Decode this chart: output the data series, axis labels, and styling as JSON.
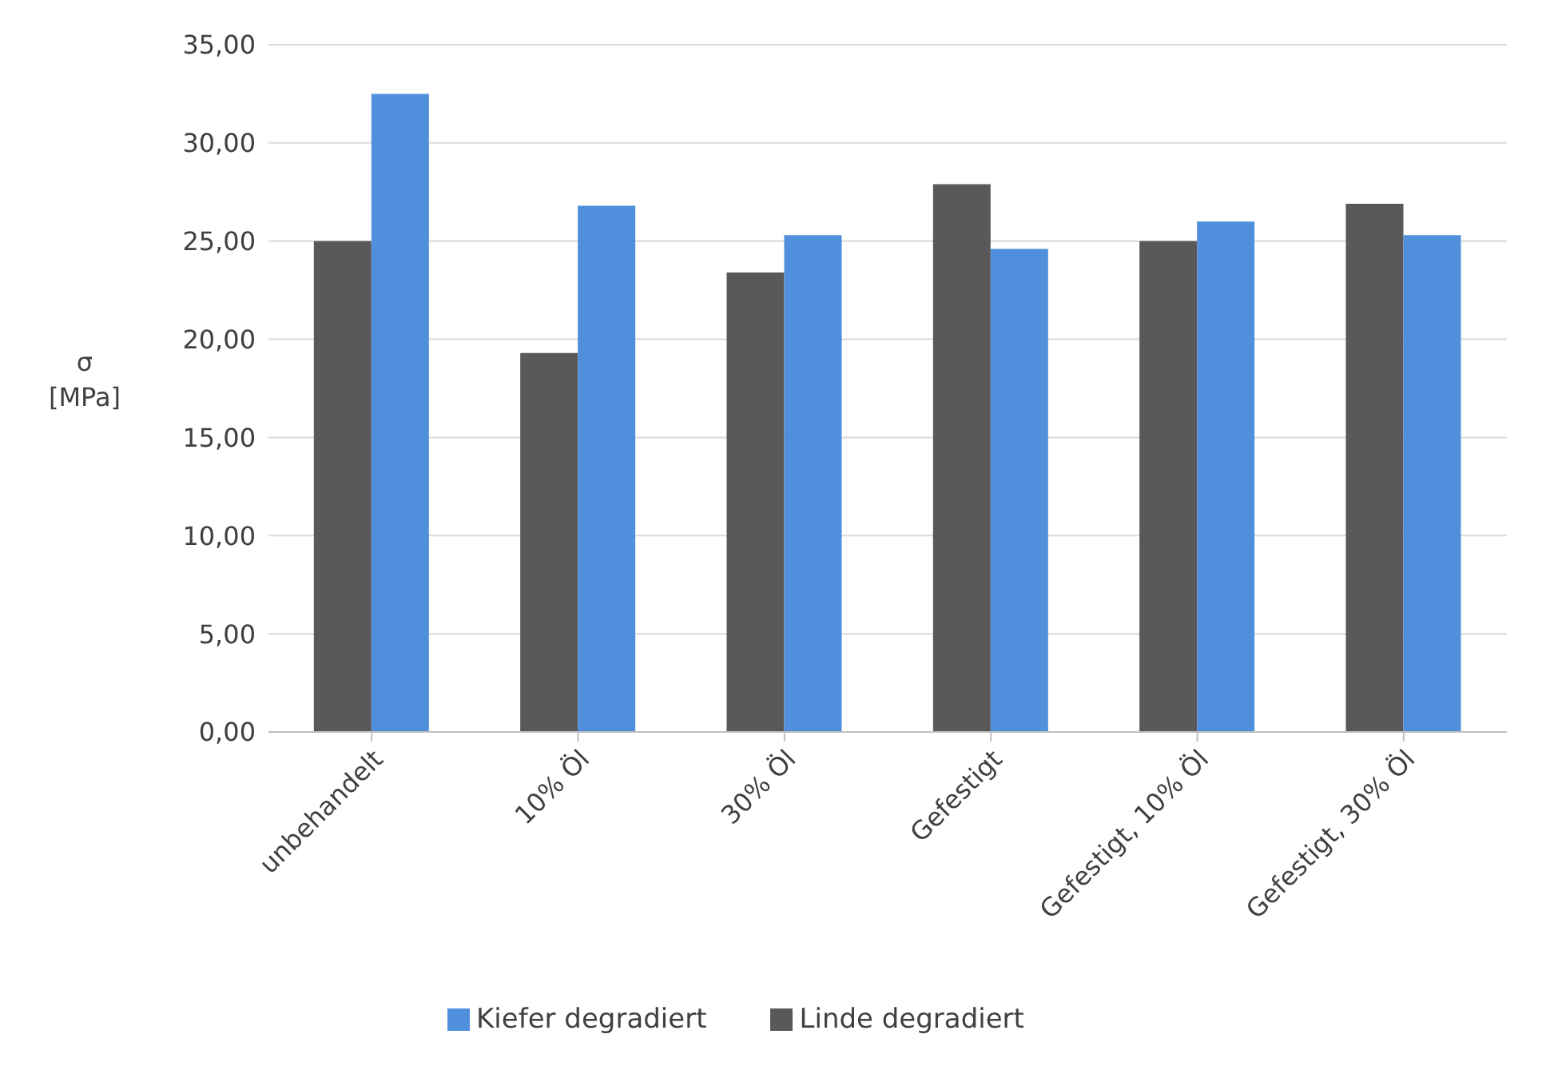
{
  "chart_data": {
    "type": "bar",
    "ylabel": "σ [MPa]",
    "categories": [
      "unbehandelt",
      "10% Öl",
      "30% Öl",
      "Gefestigt",
      "Gefestigt, 10% Öl",
      "Gefestigt, 30% Öl"
    ],
    "series": [
      {
        "name": "Linde degradiert",
        "color": "#595959",
        "values": [
          25.0,
          19.3,
          23.4,
          27.9,
          25.0,
          26.9
        ]
      },
      {
        "name": "Kiefer degradiert",
        "color": "#4f8fdc",
        "values": [
          32.5,
          26.8,
          25.3,
          24.6,
          26.0,
          25.3
        ]
      }
    ],
    "ylim": [
      0,
      35
    ],
    "yticks": [
      {
        "value": 0,
        "label": "0,00"
      },
      {
        "value": 5,
        "label": "5,00"
      },
      {
        "value": 10,
        "label": "10,00"
      },
      {
        "value": 15,
        "label": "15,00"
      },
      {
        "value": 20,
        "label": "20,00"
      },
      {
        "value": 25,
        "label": "25,00"
      },
      {
        "value": 30,
        "label": "30,00"
      },
      {
        "value": 35,
        "label": "35,00"
      }
    ],
    "grid": "y",
    "legend": "bottom"
  }
}
